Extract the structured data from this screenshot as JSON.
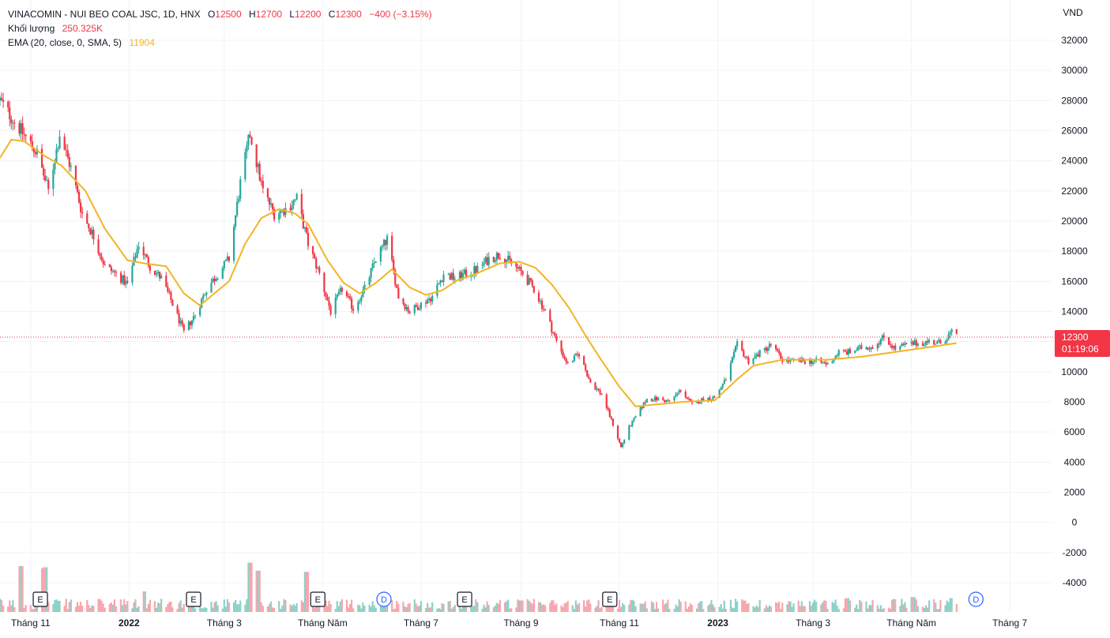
{
  "header": {
    "symbol": "VINACOMIN - NUI BEO COAL JSC, 1D, HNX",
    "o_label": "O",
    "o_value": "12500",
    "h_label": "H",
    "h_value": "12700",
    "l_label": "L",
    "l_value": "12200",
    "c_label": "C",
    "c_value": "12300",
    "change": "−400 (−3.15%)",
    "volume_label": "Khối lượng",
    "volume_value": "250.325K",
    "ema_label": "EMA (20, close, 0, SMA, 5)",
    "ema_value": "11904"
  },
  "price_badge": {
    "price": "12300",
    "countdown": "01:19:06"
  },
  "colors": {
    "up": "#26a69a",
    "down": "#f23645",
    "vol_up": "#8ed1c7",
    "vol_down": "#f5a7ad",
    "ema": "#f5b323",
    "grid": "#f0f3fa",
    "axis_text": "#131722",
    "marker": "#2962ff"
  },
  "events": [
    {
      "type": "E",
      "date": "2021-11-07"
    },
    {
      "type": "E",
      "date": "2022-02-10"
    },
    {
      "type": "E",
      "date": "2022-04-28"
    },
    {
      "type": "D",
      "date": "2022-06-08"
    },
    {
      "type": "E",
      "date": "2022-07-28"
    },
    {
      "type": "E",
      "date": "2022-10-26"
    },
    {
      "type": "D",
      "date": "2023-06-10"
    }
  ],
  "chart_data": {
    "type": "candlestick",
    "title": "VINACOMIN - NUI BEO COAL JSC, 1D, HNX",
    "currency": "VND",
    "x_type": "date",
    "xlim": [
      "2021-10-13",
      "2023-07-20"
    ],
    "x_tick_labels": [
      {
        "label": "Tháng 11",
        "date": "2021-11-01",
        "bold": false
      },
      {
        "label": "2022",
        "date": "2022-01-01",
        "bold": true
      },
      {
        "label": "Tháng 3",
        "date": "2022-03-01",
        "bold": false
      },
      {
        "label": "Tháng Năm",
        "date": "2022-05-01",
        "bold": false
      },
      {
        "label": "Tháng 7",
        "date": "2022-07-01",
        "bold": false
      },
      {
        "label": "Tháng 9",
        "date": "2022-09-01",
        "bold": false
      },
      {
        "label": "Tháng 11",
        "date": "2022-11-01",
        "bold": false
      },
      {
        "label": "2023",
        "date": "2023-01-01",
        "bold": true
      },
      {
        "label": "Tháng 3",
        "date": "2023-03-01",
        "bold": false
      },
      {
        "label": "Tháng Năm",
        "date": "2023-05-01",
        "bold": false
      },
      {
        "label": "Tháng 7",
        "date": "2023-07-01",
        "bold": false
      }
    ],
    "y_axis": {
      "ticks": [
        "32000",
        "30000",
        "28000",
        "26000",
        "24000",
        "22000",
        "20000",
        "18000",
        "16000",
        "14000",
        "12000",
        "10000",
        "8000",
        "6000",
        "4000",
        "2000",
        "0",
        "-2000",
        "-4000"
      ],
      "scale": "linear",
      "ylim": [
        -5300,
        33100
      ],
      "grid": true
    },
    "last_price": 12300,
    "last_date": "2023-05-29",
    "price_waypoints": [
      [
        "2021-10-13",
        28000
      ],
      [
        "2021-10-22",
        26600
      ],
      [
        "2021-11-05",
        24500
      ],
      [
        "2021-11-12",
        22000
      ],
      [
        "2021-11-19",
        25800
      ],
      [
        "2021-11-26",
        23500
      ],
      [
        "2021-12-03",
        20500
      ],
      [
        "2021-12-10",
        19000
      ],
      [
        "2021-12-17",
        17000
      ],
      [
        "2021-12-24",
        16500
      ],
      [
        "2021-12-31",
        15800
      ],
      [
        "2022-01-07",
        18500
      ],
      [
        "2022-01-14",
        17000
      ],
      [
        "2022-01-21",
        16200
      ],
      [
        "2022-01-28",
        14500
      ],
      [
        "2022-02-04",
        12600
      ],
      [
        "2022-02-11",
        13800
      ],
      [
        "2022-02-18",
        15500
      ],
      [
        "2022-02-25",
        16500
      ],
      [
        "2022-03-04",
        17500
      ],
      [
        "2022-03-11",
        22500
      ],
      [
        "2022-03-17",
        25800
      ],
      [
        "2022-03-25",
        22000
      ],
      [
        "2022-04-01",
        20500
      ],
      [
        "2022-04-08",
        20800
      ],
      [
        "2022-04-15",
        21500
      ],
      [
        "2022-04-22",
        18500
      ],
      [
        "2022-04-29",
        16500
      ],
      [
        "2022-05-06",
        14000
      ],
      [
        "2022-05-13",
        15500
      ],
      [
        "2022-05-20",
        14200
      ],
      [
        "2022-05-27",
        15500
      ],
      [
        "2022-06-03",
        17500
      ],
      [
        "2022-06-10",
        18800
      ],
      [
        "2022-06-17",
        15000
      ],
      [
        "2022-06-24",
        14000
      ],
      [
        "2022-07-01",
        14500
      ],
      [
        "2022-07-08",
        15000
      ],
      [
        "2022-07-15",
        16500
      ],
      [
        "2022-07-22",
        16200
      ],
      [
        "2022-07-29",
        16500
      ],
      [
        "2022-08-05",
        16800
      ],
      [
        "2022-08-12",
        17500
      ],
      [
        "2022-08-19",
        17800
      ],
      [
        "2022-08-26",
        17200
      ],
      [
        "2022-09-02",
        16500
      ],
      [
        "2022-09-09",
        15500
      ],
      [
        "2022-09-16",
        14000
      ],
      [
        "2022-09-23",
        12000
      ],
      [
        "2022-09-30",
        10500
      ],
      [
        "2022-10-07",
        11200
      ],
      [
        "2022-10-14",
        9300
      ],
      [
        "2022-10-21",
        8500
      ],
      [
        "2022-10-28",
        6500
      ],
      [
        "2022-11-02",
        5000
      ],
      [
        "2022-11-07",
        6300
      ],
      [
        "2022-11-11",
        7000
      ],
      [
        "2022-11-18",
        8200
      ],
      [
        "2022-11-25",
        8200
      ],
      [
        "2022-12-02",
        8000
      ],
      [
        "2022-12-09",
        8800
      ],
      [
        "2022-12-16",
        7800
      ],
      [
        "2022-12-23",
        8200
      ],
      [
        "2022-12-30",
        8300
      ],
      [
        "2023-01-06",
        9500
      ],
      [
        "2023-01-13",
        11800
      ],
      [
        "2023-01-20",
        10700
      ],
      [
        "2023-02-03",
        11800
      ],
      [
        "2023-02-10",
        10800
      ],
      [
        "2023-02-17",
        10700
      ],
      [
        "2023-02-24",
        10700
      ],
      [
        "2023-03-03",
        10700
      ],
      [
        "2023-03-10",
        10500
      ],
      [
        "2023-03-17",
        11300
      ],
      [
        "2023-03-24",
        11300
      ],
      [
        "2023-03-31",
        11600
      ],
      [
        "2023-04-07",
        11700
      ],
      [
        "2023-04-14",
        12300
      ],
      [
        "2023-04-21",
        11500
      ],
      [
        "2023-04-28",
        11800
      ],
      [
        "2023-05-05",
        11900
      ],
      [
        "2023-05-12",
        12000
      ],
      [
        "2023-05-19",
        11900
      ],
      [
        "2023-05-26",
        12600
      ],
      [
        "2023-05-29",
        12300
      ]
    ],
    "ema": {
      "name": "EMA (20, close, 0, SMA, 5)",
      "waypoints": [
        [
          "2021-10-13",
          24200
        ],
        [
          "2021-10-20",
          25400
        ],
        [
          "2021-10-28",
          25300
        ],
        [
          "2021-11-10",
          24300
        ],
        [
          "2021-11-20",
          23700
        ],
        [
          "2021-12-05",
          22000
        ],
        [
          "2021-12-17",
          19500
        ],
        [
          "2021-12-31",
          17400
        ],
        [
          "2022-01-10",
          17200
        ],
        [
          "2022-01-24",
          17000
        ],
        [
          "2022-02-04",
          15200
        ],
        [
          "2022-02-14",
          14400
        ],
        [
          "2022-02-24",
          15300
        ],
        [
          "2022-03-04",
          16000
        ],
        [
          "2022-03-14",
          18500
        ],
        [
          "2022-03-24",
          20200
        ],
        [
          "2022-04-04",
          20800
        ],
        [
          "2022-04-14",
          20500
        ],
        [
          "2022-04-22",
          19800
        ],
        [
          "2022-05-04",
          17400
        ],
        [
          "2022-05-14",
          15900
        ],
        [
          "2022-05-24",
          15200
        ],
        [
          "2022-06-03",
          15900
        ],
        [
          "2022-06-13",
          16800
        ],
        [
          "2022-06-24",
          15600
        ],
        [
          "2022-07-04",
          15100
        ],
        [
          "2022-07-14",
          15400
        ],
        [
          "2022-07-24",
          16100
        ],
        [
          "2022-08-04",
          16500
        ],
        [
          "2022-08-19",
          17200
        ],
        [
          "2022-08-31",
          17300
        ],
        [
          "2022-09-10",
          16900
        ],
        [
          "2022-09-20",
          15800
        ],
        [
          "2022-10-01",
          14200
        ],
        [
          "2022-10-11",
          12400
        ],
        [
          "2022-10-20",
          10900
        ],
        [
          "2022-11-01",
          9000
        ],
        [
          "2022-11-11",
          7700
        ],
        [
          "2022-11-21",
          7800
        ],
        [
          "2022-12-10",
          8000
        ],
        [
          "2022-12-30",
          8100
        ],
        [
          "2023-01-13",
          9500
        ],
        [
          "2023-01-23",
          10400
        ],
        [
          "2023-02-10",
          10800
        ],
        [
          "2023-03-10",
          10800
        ],
        [
          "2023-03-31",
          11000
        ],
        [
          "2023-04-20",
          11300
        ],
        [
          "2023-05-10",
          11600
        ],
        [
          "2023-05-29",
          11904
        ]
      ]
    },
    "volume": {
      "name": "Khối lượng",
      "peaks": [
        [
          "2021-10-26",
          4000
        ],
        [
          "2021-11-08",
          3800
        ],
        [
          "2021-11-10",
          3900
        ],
        [
          "2022-01-10",
          1800
        ],
        [
          "2022-03-17",
          4300
        ],
        [
          "2022-03-22",
          3600
        ],
        [
          "2022-04-21",
          3500
        ],
        [
          "2022-06-06",
          700
        ],
        [
          "2022-08-02",
          500
        ],
        [
          "2022-09-01",
          1000
        ],
        [
          "2023-01-17",
          1000
        ],
        [
          "2023-01-20",
          700
        ],
        [
          "2023-03-22",
          1200
        ],
        [
          "2023-05-02",
          1300
        ],
        [
          "2023-05-26",
          1200
        ]
      ]
    }
  }
}
